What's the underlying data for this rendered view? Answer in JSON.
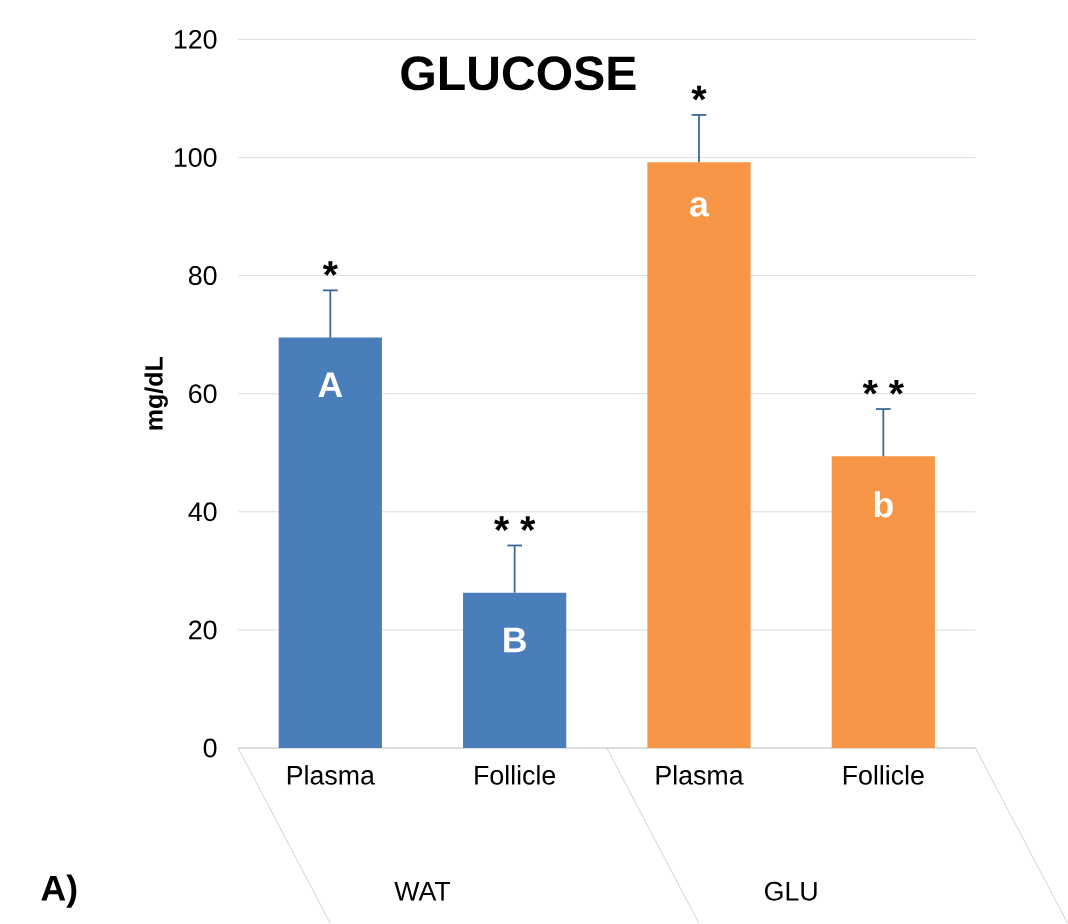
{
  "chart_data": {
    "type": "bar",
    "title": "GLUCOSE",
    "ylabel": "mg/dL",
    "categories": [
      "Plasma",
      "Follicle",
      "Plasma",
      "Follicle"
    ],
    "values": [
      69.5,
      26.3,
      99.2,
      49.4
    ],
    "errors": [
      [
        69.5,
        77.5
      ],
      [
        26.3,
        34.3
      ],
      [
        99.2,
        107.2
      ],
      [
        49.4,
        57.4
      ]
    ],
    "colors": [
      "#4a7ebb",
      "#4a7ebb",
      "#f79646",
      "#f79646"
    ],
    "value_labels": [
      "A",
      "B",
      "a",
      "b"
    ],
    "annotations": [
      "*",
      "* *",
      "*",
      "* *",
      "WAT",
      "GLU",
      "A)"
    ],
    "ylim": [
      0,
      120
    ],
    "yticks": [
      0,
      20,
      40,
      60,
      80,
      100,
      120
    ],
    "grid": "y"
  }
}
